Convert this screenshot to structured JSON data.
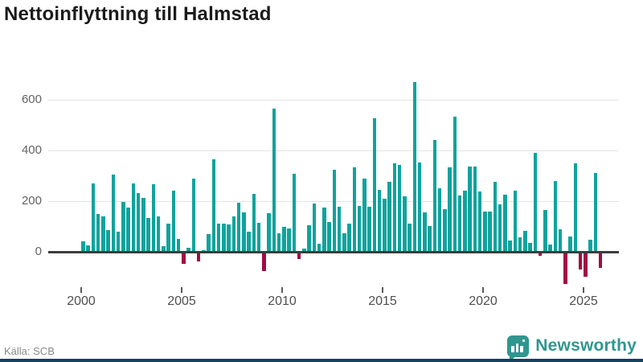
{
  "header": {
    "title": "Nettoinflyttning till Halmstad"
  },
  "footer": {
    "source_label": "Källa: SCB",
    "brand_name": "Newsworthy"
  },
  "chart": {
    "y_ticks_top_to_bottom": [
      "600",
      "400",
      "200",
      "0"
    ],
    "x_ticks": [
      "2000",
      "2005",
      "2010",
      "2015",
      "2020",
      "2025"
    ]
  },
  "chart_data": {
    "type": "bar",
    "title": "Nettoinflyttning till Halmstad",
    "source": "Källa: SCB",
    "frequency": "quarterly",
    "x_start": "2000-Q1",
    "x_end": "2025-Q4",
    "xlabel": "",
    "ylabel": "",
    "ylim": [
      -150,
      700
    ],
    "y_gridlines": [
      0,
      200,
      400,
      600
    ],
    "x_tick_years": [
      2000,
      2005,
      2010,
      2015,
      2020,
      2025
    ],
    "positive_color": "#10a39c",
    "negative_color": "#a10c45",
    "values": [
      40,
      26,
      270,
      148,
      141,
      85,
      305,
      78,
      197,
      176,
      270,
      233,
      212,
      134,
      268,
      140,
      23,
      111,
      241,
      51,
      -40,
      15,
      289,
      -32,
      6,
      70,
      365,
      112,
      110,
      108,
      141,
      195,
      157,
      78,
      230,
      114,
      -70,
      152,
      564,
      72,
      98,
      93,
      308,
      -21,
      14,
      105,
      190,
      32,
      175,
      118,
      324,
      179,
      72,
      112,
      334,
      182,
      289,
      178,
      526,
      244,
      209,
      276,
      348,
      343,
      218,
      112,
      671,
      351,
      154,
      102,
      440,
      251,
      168,
      332,
      533,
      223,
      242,
      335,
      338,
      239,
      158,
      158,
      277,
      188,
      224,
      45,
      242,
      58,
      82,
      36,
      390,
      -10,
      166,
      28,
      280,
      89,
      -120,
      59,
      349,
      -62,
      -91,
      48,
      310,
      -56
    ]
  }
}
